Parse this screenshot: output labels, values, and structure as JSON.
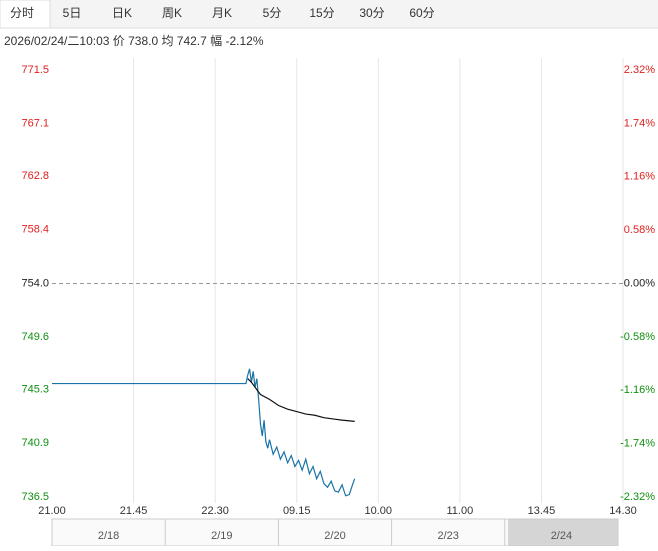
{
  "tabs": [
    "分时",
    "5日",
    "日K",
    "周K",
    "月K",
    "5分",
    "15分",
    "30分",
    "60分"
  ],
  "info": "2026/02/24/二10:03  价 738.0  均 742.7  幅 -2.12%",
  "chart_data": {
    "type": "line",
    "xlim": [
      0,
      315
    ],
    "xticks": [
      {
        "value": 0,
        "label": "21.00"
      },
      {
        "value": 45,
        "label": "21.45"
      },
      {
        "value": 90,
        "label": "22.30"
      },
      {
        "value": 135,
        "label": "09.15"
      },
      {
        "value": 180,
        "label": "10.00"
      },
      {
        "value": 225,
        "label": "11.00"
      },
      {
        "value": 270,
        "label": "13.45"
      },
      {
        "value": 315,
        "label": "14.30"
      }
    ],
    "ylim": [
      736.5,
      771.5
    ],
    "yticks": [
      771.5,
      767.1,
      762.8,
      758.4,
      {
        "value": 754,
        "label": "754.0"
      },
      749.6,
      745.3,
      740.9,
      736.5
    ],
    "y2lim": [
      -2.32,
      2.32
    ],
    "y2ticks": [
      {
        "value": 2.32,
        "label": "2.32%"
      },
      {
        "value": 1.74,
        "label": "1.74%"
      },
      {
        "value": 1.16,
        "label": "1.16%"
      },
      {
        "value": 0.58,
        "label": "0.58%"
      },
      {
        "value": 0,
        "label": "0.00%"
      },
      {
        "value": -0.58,
        "label": "-0.58%"
      },
      {
        "value": -1.16,
        "label": "-1.16%"
      },
      {
        "value": -1.74,
        "label": "-1.74%"
      },
      {
        "value": -2.32,
        "label": "-2.32%"
      }
    ],
    "reference_line": 754,
    "up_color": "#e02020",
    "down_color": "#109010",
    "grid": "x",
    "series": [
      {
        "color": "#1a73a8",
        "x": [
          0,
          107,
          108,
          109,
          110,
          111,
          112,
          113,
          114,
          115,
          116,
          117,
          118,
          119,
          120,
          122,
          124,
          126,
          128,
          130,
          132,
          134,
          136,
          138,
          140,
          142,
          144,
          146,
          148,
          150,
          152,
          154,
          156,
          158,
          160,
          162,
          164,
          166,
          167
        ],
        "values": [
          745.8,
          745.8,
          746.5,
          747.0,
          745.9,
          746.8,
          745.5,
          746.2,
          744.5,
          742.5,
          741.5,
          742.8,
          741.0,
          740.5,
          741.2,
          740.0,
          740.6,
          739.6,
          740.2,
          739.3,
          739.9,
          739.0,
          739.5,
          738.7,
          739.6,
          738.4,
          739.0,
          738.0,
          738.6,
          737.6,
          737.3,
          737.8,
          737.0,
          736.9,
          737.5,
          736.6,
          736.7,
          737.6,
          738.0
        ]
      },
      {
        "color": "#111111",
        "x": [
          108,
          110,
          115,
          120,
          125,
          130,
          135,
          140,
          145,
          150,
          155,
          160,
          167
        ],
        "values": [
          746.2,
          745.9,
          744.9,
          744.5,
          744.0,
          743.7,
          743.5,
          743.3,
          743.2,
          743.0,
          742.9,
          742.8,
          742.7
        ]
      }
    ],
    "navigator": [
      "2/18",
      "2/19",
      "2/20",
      "2/23",
      "2/24"
    ]
  }
}
